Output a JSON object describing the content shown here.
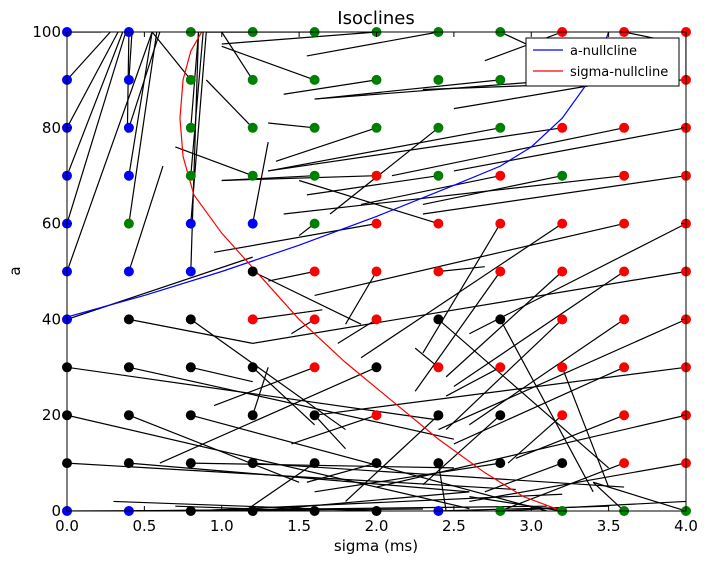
{
  "chart_data": {
    "type": "scatter",
    "title": "Isoclines",
    "xlabel": "sigma (ms)",
    "ylabel": "a",
    "xlim": [
      0,
      4
    ],
    "ylim": [
      0,
      100
    ],
    "xticks": [
      "0.0",
      "0.5",
      "1.0",
      "1.5",
      "2.0",
      "2.5",
      "3.0",
      "3.5",
      "4.0"
    ],
    "yticks": [
      "0",
      "20",
      "40",
      "60",
      "80",
      "100"
    ],
    "grid": false,
    "legend_position": "top-right",
    "legend": [
      {
        "label": "a-nullcline",
        "color": "#0000ff"
      },
      {
        "label": "sigma-nullcline",
        "color": "#ff0000"
      }
    ],
    "colors": {
      "blue": "#0000ff",
      "green": "#008000",
      "red": "#ff0000",
      "black": "#000000"
    },
    "grid_points": {
      "x": [
        0.0,
        0.4,
        0.8,
        1.2,
        1.6,
        2.0,
        2.4,
        2.8,
        3.2,
        3.6,
        4.0
      ],
      "y": [
        0,
        10,
        20,
        30,
        40,
        50,
        60,
        70,
        80,
        90,
        100
      ],
      "colors_by_row": [
        [
          "b",
          "b",
          "k",
          "k",
          "k",
          "k",
          "b",
          "g",
          "g",
          "g",
          "g"
        ],
        [
          "k",
          "k",
          "k",
          "k",
          "k",
          "k",
          "k",
          "k",
          "k",
          "r",
          "r"
        ],
        [
          "k",
          "k",
          "k",
          "k",
          "k",
          "r",
          "k",
          "k",
          "r",
          "r",
          "r"
        ],
        [
          "k",
          "k",
          "k",
          "k",
          "r",
          "k",
          "r",
          "r",
          "r",
          "r",
          "r"
        ],
        [
          "b",
          "k",
          "k",
          "r",
          "r",
          "r",
          "k",
          "k",
          "r",
          "r",
          "r"
        ],
        [
          "b",
          "b",
          "b",
          "k",
          "r",
          "r",
          "r",
          "r",
          "r",
          "r",
          "r"
        ],
        [
          "b",
          "g",
          "b",
          "b",
          "g",
          "r",
          "r",
          "r",
          "r",
          "r",
          "r"
        ],
        [
          "b",
          "b",
          "g",
          "g",
          "g",
          "r",
          "g",
          "r",
          "g",
          "r",
          "r"
        ],
        [
          "b",
          "b",
          "g",
          "g",
          "g",
          "g",
          "g",
          "g",
          "r",
          "r",
          "r"
        ],
        [
          "b",
          "b",
          "g",
          "g",
          "g",
          "g",
          "g",
          "g",
          "r",
          "r",
          "r"
        ],
        [
          "b",
          "b",
          "g",
          "g",
          "g",
          "g",
          "g",
          "g",
          "r",
          "r",
          "r"
        ]
      ]
    },
    "a_nullcline": {
      "name": "a-nullcline",
      "color": "#0000ff",
      "x": [
        0.0,
        0.5,
        1.0,
        1.5,
        2.0,
        2.5,
        2.8,
        3.0,
        3.2,
        3.4,
        3.5
      ],
      "y": [
        40.5,
        45,
        50,
        55.5,
        61.5,
        68,
        72,
        76,
        82,
        91,
        100
      ]
    },
    "sigma_nullcline": {
      "name": "sigma-nullcline",
      "color": "#ff0000",
      "x": [
        0.87,
        0.8,
        0.75,
        0.73,
        0.75,
        0.82,
        1.0,
        1.25,
        1.5,
        1.8,
        2.1,
        2.4,
        2.7,
        2.95,
        3.2
      ],
      "y": [
        100,
        96,
        90,
        82,
        74,
        66,
        58,
        49,
        40,
        31,
        23,
        15,
        8,
        3,
        0
      ]
    },
    "segments": [
      [
        0.0,
        100,
        0.22,
        100
      ],
      [
        0.0,
        90,
        0.28,
        100
      ],
      [
        0.0,
        80,
        0.33,
        100
      ],
      [
        0.0,
        70,
        0.36,
        100
      ],
      [
        0.0,
        60,
        0.38,
        100
      ],
      [
        0.0,
        50,
        0.55,
        100
      ],
      [
        0.0,
        40,
        1.2,
        53
      ],
      [
        0.0,
        30,
        2.4,
        19
      ],
      [
        0.0,
        20,
        2.6,
        0.5
      ],
      [
        0.0,
        10,
        2.9,
        4.5
      ],
      [
        0.0,
        0,
        2.3,
        0.4
      ],
      [
        0.4,
        100,
        0.39,
        79
      ],
      [
        0.4,
        90,
        0.42,
        100
      ],
      [
        0.4,
        80,
        0.6,
        100
      ],
      [
        0.4,
        70,
        0.55,
        100
      ],
      [
        0.4,
        60,
        0.58,
        100
      ],
      [
        0.4,
        50,
        0.62,
        72
      ],
      [
        0.4,
        40,
        1.2,
        35
      ],
      [
        0.4,
        30,
        2.5,
        15
      ],
      [
        0.4,
        20,
        1.5,
        6
      ],
      [
        0.4,
        10,
        2.6,
        4
      ],
      [
        0.4,
        0,
        3.1,
        1
      ],
      [
        0.8,
        100,
        0.88,
        100
      ],
      [
        0.8,
        90,
        0.55,
        100
      ],
      [
        0.8,
        80,
        0.85,
        100
      ],
      [
        0.8,
        70,
        0.88,
        100
      ],
      [
        0.8,
        60,
        0.9,
        100
      ],
      [
        0.8,
        50,
        0.85,
        100
      ],
      [
        0.8,
        40,
        1.8,
        17
      ],
      [
        0.8,
        30,
        1.2,
        27
      ],
      [
        0.8,
        20,
        3.1,
        0
      ],
      [
        0.8,
        10,
        2.5,
        9
      ],
      [
        0.8,
        0,
        3.2,
        3.5
      ],
      [
        1.2,
        100,
        0.9,
        100
      ],
      [
        1.2,
        90,
        1.0,
        100
      ],
      [
        1.2,
        80,
        0.9,
        90
      ],
      [
        1.2,
        70,
        0.7,
        76
      ],
      [
        1.2,
        60,
        1.3,
        77
      ],
      [
        1.2,
        50,
        1.9,
        39
      ],
      [
        1.2,
        40,
        1.65,
        42
      ],
      [
        1.2,
        30,
        1.6,
        18
      ],
      [
        1.2,
        20,
        1.3,
        30
      ],
      [
        1.2,
        10,
        3.6,
        5
      ],
      [
        1.2,
        0,
        2.6,
        4
      ],
      [
        1.6,
        100,
        0.9,
        100
      ],
      [
        1.6,
        90,
        1.0,
        97
      ],
      [
        1.6,
        80,
        1.3,
        81
      ],
      [
        1.6,
        70,
        1.0,
        69
      ],
      [
        1.6,
        60,
        1.5,
        57.5
      ],
      [
        1.6,
        50,
        1.3,
        48
      ],
      [
        1.6,
        40,
        1.45,
        37
      ],
      [
        1.6,
        30,
        0.95,
        22
      ],
      [
        1.6,
        20,
        1.8,
        13
      ],
      [
        1.6,
        10,
        1.15,
        0
      ],
      [
        1.6,
        0,
        0.7,
        1
      ],
      [
        2.0,
        100,
        1.0,
        97.5
      ],
      [
        2.0,
        90,
        1.4,
        87
      ],
      [
        2.0,
        80,
        1.35,
        73
      ],
      [
        2.0,
        70,
        1.0,
        69
      ],
      [
        2.0,
        60,
        0.95,
        54
      ],
      [
        2.0,
        50,
        1.8,
        39
      ],
      [
        2.0,
        40,
        1.75,
        35
      ],
      [
        2.0,
        30,
        0.6,
        10
      ],
      [
        2.0,
        20,
        1.45,
        14
      ],
      [
        2.0,
        10,
        1.55,
        6
      ],
      [
        2.0,
        0,
        0.3,
        2
      ],
      [
        2.4,
        100,
        1.55,
        95
      ],
      [
        2.4,
        90,
        2.4,
        90
      ],
      [
        2.4,
        80,
        1.7,
        62
      ],
      [
        2.4,
        70,
        1.55,
        66
      ],
      [
        2.4,
        60,
        1.5,
        69
      ],
      [
        2.4,
        50,
        2.7,
        51
      ],
      [
        2.4,
        40,
        3.5,
        9
      ],
      [
        2.4,
        30,
        2.25,
        34
      ],
      [
        2.4,
        20,
        1.8,
        2
      ],
      [
        2.4,
        10,
        2.45,
        0
      ],
      [
        2.4,
        0,
        3.5,
        1
      ],
      [
        2.8,
        100,
        3.2,
        94
      ],
      [
        2.8,
        90,
        1.6,
        86
      ],
      [
        2.8,
        80,
        1.3,
        71
      ],
      [
        2.8,
        70,
        1.9,
        64
      ],
      [
        2.8,
        60,
        2.3,
        33
      ],
      [
        2.8,
        50,
        2.25,
        25
      ],
      [
        2.8,
        40,
        3.4,
        4
      ],
      [
        2.8,
        30,
        2.45,
        24
      ],
      [
        2.8,
        20,
        2.3,
        5.5
      ],
      [
        2.8,
        10,
        1.6,
        4
      ],
      [
        2.8,
        0,
        4.0,
        2
      ],
      [
        3.2,
        100,
        2.7,
        94
      ],
      [
        3.2,
        90,
        1.6,
        86
      ],
      [
        3.2,
        80,
        1.3,
        71
      ],
      [
        3.2,
        70,
        2.3,
        64
      ],
      [
        3.2,
        60,
        1.9,
        32
      ],
      [
        3.2,
        50,
        2.45,
        28
      ],
      [
        3.2,
        40,
        2.45,
        17
      ],
      [
        3.2,
        30,
        3.5,
        5
      ],
      [
        3.2,
        20,
        2.85,
        10
      ],
      [
        3.2,
        10,
        2.7,
        4
      ],
      [
        3.2,
        0,
        2.6,
        3
      ],
      [
        3.6,
        100,
        3.9,
        98
      ],
      [
        3.6,
        90,
        2.5,
        84
      ],
      [
        3.6,
        80,
        2.1,
        70
      ],
      [
        3.6,
        70,
        1.4,
        62
      ],
      [
        3.6,
        60,
        1.6,
        45
      ],
      [
        3.6,
        50,
        2.5,
        26
      ],
      [
        3.6,
        40,
        2.6,
        18
      ],
      [
        3.6,
        30,
        2.5,
        14
      ],
      [
        3.6,
        20,
        2.9,
        11
      ],
      [
        3.6,
        10,
        2.8,
        0
      ],
      [
        3.6,
        0,
        3.4,
        6
      ],
      [
        4.0,
        100,
        4.0,
        90
      ],
      [
        4.0,
        90,
        2.3,
        88
      ],
      [
        4.0,
        80,
        2.5,
        71
      ],
      [
        4.0,
        70,
        2.3,
        62
      ],
      [
        4.0,
        60,
        2.6,
        37
      ],
      [
        4.0,
        50,
        1.2,
        35
      ],
      [
        4.0,
        40,
        2.4,
        17
      ],
      [
        4.0,
        30,
        1.6,
        20
      ],
      [
        4.0,
        20,
        2.0,
        5
      ],
      [
        4.0,
        10,
        2.6,
        2
      ],
      [
        4.0,
        0,
        3.4,
        6
      ]
    ]
  }
}
